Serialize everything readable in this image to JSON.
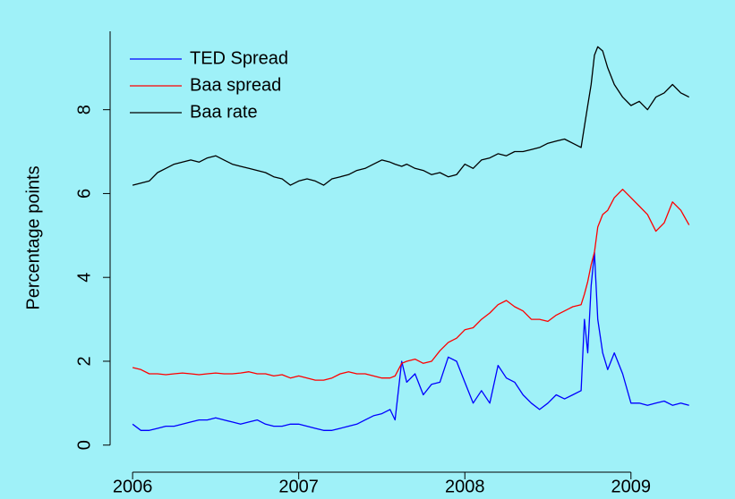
{
  "chart_data": {
    "type": "line",
    "ylabel": "Percentage points",
    "x": [
      2006.0,
      2006.05,
      2006.1,
      2006.15,
      2006.2,
      2006.25,
      2006.3,
      2006.35,
      2006.4,
      2006.45,
      2006.5,
      2006.55,
      2006.6,
      2006.65,
      2006.7,
      2006.75,
      2006.8,
      2006.85,
      2006.9,
      2006.95,
      2007.0,
      2007.05,
      2007.1,
      2007.15,
      2007.2,
      2007.25,
      2007.3,
      2007.35,
      2007.4,
      2007.45,
      2007.5,
      2007.55,
      2007.58,
      2007.62,
      2007.65,
      2007.7,
      2007.75,
      2007.8,
      2007.85,
      2007.9,
      2007.95,
      2008.0,
      2008.05,
      2008.1,
      2008.15,
      2008.2,
      2008.25,
      2008.3,
      2008.35,
      2008.4,
      2008.45,
      2008.5,
      2008.55,
      2008.6,
      2008.65,
      2008.7,
      2008.72,
      2008.74,
      2008.76,
      2008.78,
      2008.8,
      2008.83,
      2008.86,
      2008.9,
      2008.95,
      2009.0,
      2009.05,
      2009.1,
      2009.15,
      2009.2,
      2009.25,
      2009.3,
      2009.35
    ],
    "series": [
      {
        "name": "TED Spread",
        "color": "#0000ff",
        "values": [
          0.5,
          0.35,
          0.35,
          0.4,
          0.45,
          0.45,
          0.5,
          0.55,
          0.6,
          0.6,
          0.65,
          0.6,
          0.55,
          0.5,
          0.55,
          0.6,
          0.5,
          0.45,
          0.45,
          0.5,
          0.5,
          0.45,
          0.4,
          0.35,
          0.35,
          0.4,
          0.45,
          0.5,
          0.6,
          0.7,
          0.75,
          0.85,
          0.6,
          2.0,
          1.5,
          1.7,
          1.2,
          1.45,
          1.5,
          2.1,
          2.0,
          1.5,
          1.0,
          1.3,
          1.0,
          1.9,
          1.6,
          1.5,
          1.2,
          1.0,
          0.85,
          1.0,
          1.2,
          1.1,
          1.2,
          1.3,
          3.0,
          2.2,
          3.8,
          4.6,
          3.0,
          2.2,
          1.8,
          2.2,
          1.7,
          1.0,
          1.0,
          0.95,
          1.0,
          1.05,
          0.95,
          1.0,
          0.95
        ]
      },
      {
        "name": "Baa spread",
        "color": "#ff0000",
        "values": [
          1.85,
          1.8,
          1.7,
          1.7,
          1.68,
          1.7,
          1.72,
          1.7,
          1.68,
          1.7,
          1.72,
          1.7,
          1.7,
          1.72,
          1.75,
          1.7,
          1.7,
          1.65,
          1.68,
          1.6,
          1.65,
          1.6,
          1.55,
          1.55,
          1.6,
          1.7,
          1.75,
          1.7,
          1.7,
          1.65,
          1.6,
          1.6,
          1.65,
          1.95,
          2.0,
          2.05,
          1.95,
          2.0,
          2.25,
          2.45,
          2.55,
          2.75,
          2.8,
          3.0,
          3.15,
          3.35,
          3.45,
          3.3,
          3.2,
          3.0,
          3.0,
          2.95,
          3.1,
          3.2,
          3.3,
          3.35,
          3.6,
          3.9,
          4.3,
          4.6,
          5.2,
          5.5,
          5.6,
          5.9,
          6.1,
          5.9,
          5.7,
          5.5,
          5.1,
          5.3,
          5.8,
          5.6,
          5.25
        ]
      },
      {
        "name": "Baa rate",
        "color": "#000000",
        "values": [
          6.2,
          6.25,
          6.3,
          6.5,
          6.6,
          6.7,
          6.75,
          6.8,
          6.75,
          6.85,
          6.9,
          6.8,
          6.7,
          6.65,
          6.6,
          6.55,
          6.5,
          6.4,
          6.35,
          6.2,
          6.3,
          6.35,
          6.3,
          6.2,
          6.35,
          6.4,
          6.45,
          6.55,
          6.6,
          6.7,
          6.8,
          6.75,
          6.7,
          6.65,
          6.7,
          6.6,
          6.55,
          6.45,
          6.5,
          6.4,
          6.45,
          6.7,
          6.6,
          6.8,
          6.85,
          6.95,
          6.9,
          7.0,
          7.0,
          7.05,
          7.1,
          7.2,
          7.25,
          7.3,
          7.2,
          7.1,
          7.6,
          8.1,
          8.6,
          9.3,
          9.5,
          9.4,
          9.0,
          8.6,
          8.3,
          8.1,
          8.2,
          8.0,
          8.3,
          8.4,
          8.6,
          8.4,
          8.3
        ]
      }
    ],
    "xlim": [
      2005.87,
      2009.47
    ],
    "xticks": [
      2006,
      2007,
      2008,
      2009
    ],
    "ylim": [
      -0.07,
      9.87
    ],
    "yticks": [
      0,
      2,
      4,
      6,
      8
    ],
    "legend": "top-left",
    "grid": false
  }
}
